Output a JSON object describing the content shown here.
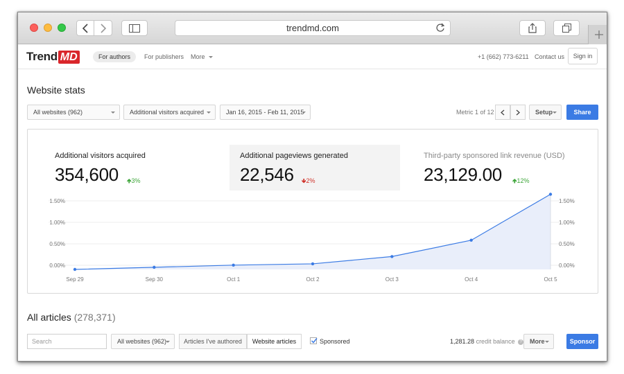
{
  "browser": {
    "url": "trendmd.com",
    "icons": [
      "back-icon",
      "forward-icon",
      "sidebar-icon",
      "reload-icon",
      "share-icon",
      "tabs-icon",
      "plus-icon"
    ]
  },
  "nav": {
    "logo_trend": "Trend",
    "logo_md": "MD",
    "items": [
      {
        "label": "For authors",
        "active": true
      },
      {
        "label": "For publishers",
        "active": false
      },
      {
        "label": "More",
        "active": false
      }
    ],
    "phone": "+1 (662) 773-6211",
    "contact": "Contact us",
    "signin": "Sign in"
  },
  "page": {
    "title": "Website stats",
    "filters": {
      "websites": "All websites (962)",
      "metric": "Additional visitors acquired",
      "daterange": "Jan 16, 2015 - Feb 11, 2015"
    },
    "metric_pager": "Metric 1 of 12",
    "setup": "Setup",
    "share": "Share"
  },
  "stats": [
    {
      "label": "Additional visitors acquired",
      "value": "354,600",
      "delta": "3%",
      "direction": "up"
    },
    {
      "label": "Additional pageviews generated",
      "value": "22,546",
      "delta": "2%",
      "direction": "down"
    },
    {
      "label": "Third-party sponsored link revenue (USD)",
      "value": "23,129.00",
      "delta": "12%",
      "direction": "up"
    }
  ],
  "colors": {
    "accent": "#3b7be4",
    "up": "#3ea63a",
    "down": "#d0332b",
    "brand": "#d9262b"
  },
  "chart_data": {
    "type": "area",
    "x": [
      "Sep 29",
      "Sep 30",
      "Oct 1",
      "Oct 2",
      "Oct 3",
      "Oct 4",
      "Oct 5"
    ],
    "series": [
      {
        "values": [
          0.0,
          0.05,
          0.1,
          0.13,
          0.3,
          0.68,
          1.75
        ]
      }
    ],
    "y_ticks": [
      "0.00%",
      "0.50%",
      "1.00%",
      "1.50%"
    ],
    "y_unit": "%",
    "ylim": [
      0,
      1.5
    ],
    "grid": true,
    "y_axis_both_sides": true
  },
  "articles": {
    "title": "All articles",
    "count": "(278,371)",
    "search_placeholder": "Search",
    "websites": "All websites (962)",
    "tabs": [
      {
        "label": "Articles I've authored",
        "active": false
      },
      {
        "label": "Website articles",
        "active": true
      }
    ],
    "sponsored_label": "Sponsored",
    "sponsored_checked": true,
    "credit_value": "1,281.28",
    "credit_label": "credit balance",
    "more": "More",
    "sponsor": "Sponsor"
  }
}
